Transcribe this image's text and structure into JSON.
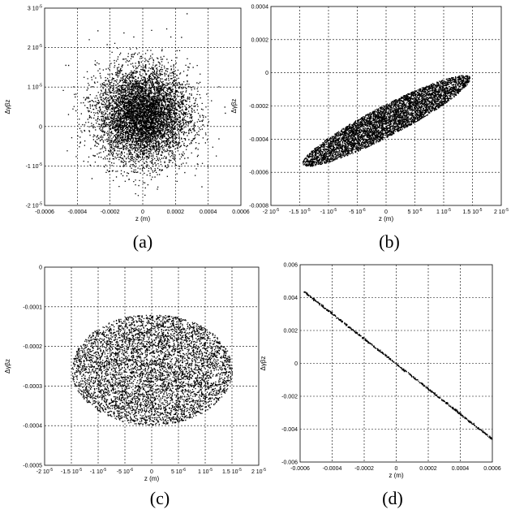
{
  "chart_data": [
    {
      "panel": "a",
      "type": "scatter",
      "caption": "(a)",
      "xlabel": "z (m)",
      "ylabel": "Δγβz",
      "xlim": [
        -0.0006,
        0.0006
      ],
      "ylim": [
        -2e-05,
        3e-05
      ],
      "x_ticks": [
        -0.0006,
        -0.0004,
        -0.0002,
        0,
        0.0002,
        0.0004,
        0.0006
      ],
      "x_tick_labels": [
        "-0.0006",
        "-0.0004",
        "-0.0002",
        "0",
        "0.0002",
        "0.0004",
        "0.0006"
      ],
      "y_ticks": [
        -2e-05,
        -1e-05,
        0,
        1e-05,
        2e-05,
        3e-05
      ],
      "y_tick_labels": [
        "-2 10-5",
        "-1 10-5",
        "0",
        "1 10-5",
        "2 10-5",
        "3 10-5"
      ],
      "grid": true,
      "distribution": {
        "shape": "gaussian",
        "center": [
          0,
          3e-06
        ],
        "sigma": [
          0.00014,
          6e-06
        ],
        "points": 9000
      }
    },
    {
      "panel": "b",
      "type": "scatter",
      "caption": "(b)",
      "xlabel": "z (m)",
      "ylabel": "Δγβz",
      "xlim": [
        -2e-05,
        2e-05
      ],
      "ylim": [
        -0.0008,
        0.0004
      ],
      "x_ticks": [
        -2e-05,
        -1.5e-05,
        -1e-05,
        -5e-06,
        0,
        5e-06,
        1e-05,
        1.5e-05,
        2e-05
      ],
      "x_tick_labels": [
        "-2 10-5",
        "-1.5 10-5",
        "-1 10-5",
        "-5 10-6",
        "0",
        "5 10-6",
        "1 10-5",
        "1.5 10-5",
        "2 10-5"
      ],
      "y_ticks": [
        -0.0008,
        -0.0006,
        -0.0004,
        -0.0002,
        0,
        0.0002,
        0.0004
      ],
      "y_tick_labels": [
        "-0.0008",
        "-0.0006",
        "-0.0004",
        "-0.0002",
        "0",
        "0.0002",
        "0.0004"
      ],
      "grid": true,
      "distribution": {
        "shape": "filled-ellipse",
        "endpoints": [
          [
            -1.45e-05,
            -0.00055
          ],
          [
            1.45e-05,
            -2.5e-05
          ]
        ],
        "half_width_fraction": 0.16,
        "points": 16000
      }
    },
    {
      "panel": "c",
      "type": "scatter",
      "caption": "(c)",
      "xlabel": "z (m)",
      "ylabel": "Δγβz",
      "xlim": [
        -2e-05,
        2e-05
      ],
      "ylim": [
        -0.0005,
        0
      ],
      "x_ticks": [
        -2e-05,
        -1.5e-05,
        -1e-05,
        -5e-06,
        0,
        5e-06,
        1e-05,
        1.5e-05,
        2e-05
      ],
      "x_tick_labels": [
        "-2 10-5",
        "-1.5 10-5",
        "-1 10-5",
        "-5 10-6",
        "0",
        "5 10-6",
        "1 10-5",
        "1.5 10-5",
        "2 10-5"
      ],
      "y_ticks": [
        -0.0005,
        -0.0004,
        -0.0003,
        -0.0002,
        -0.0001,
        0
      ],
      "y_tick_labels": [
        "-0.0005",
        "-0.0004",
        "-0.0003",
        "-0.0002",
        "-0.0001",
        "0"
      ],
      "grid": true,
      "distribution": {
        "shape": "filled-ellipse",
        "center": [
          0,
          -0.000258
        ],
        "radii": [
          1.5e-05,
          0.00014
        ],
        "points": 16000
      }
    },
    {
      "panel": "d",
      "type": "scatter",
      "caption": "(d)",
      "xlabel": "z (m)",
      "ylabel": "Δγβz",
      "xlim": [
        -0.0006,
        0.0006
      ],
      "ylim": [
        -0.006,
        0.006
      ],
      "x_ticks": [
        -0.0006,
        -0.0004,
        -0.0002,
        0,
        0.0002,
        0.0004,
        0.0006
      ],
      "x_tick_labels": [
        "-0.0006",
        "-0.0004",
        "-0.0002",
        "0",
        "0.0002",
        "0.0004",
        "0.0006"
      ],
      "y_ticks": [
        -0.006,
        -0.004,
        -0.002,
        0,
        0.002,
        0.004,
        0.006
      ],
      "y_tick_labels": [
        "-0.006",
        "-0.004",
        "-0.002",
        "0",
        "0.002",
        "0.004",
        "0.006"
      ],
      "grid": true,
      "distribution": {
        "shape": "line",
        "from": [
          -0.00058,
          0.0044
        ],
        "to": [
          0.0006,
          -0.0046
        ],
        "points": 600
      }
    }
  ]
}
